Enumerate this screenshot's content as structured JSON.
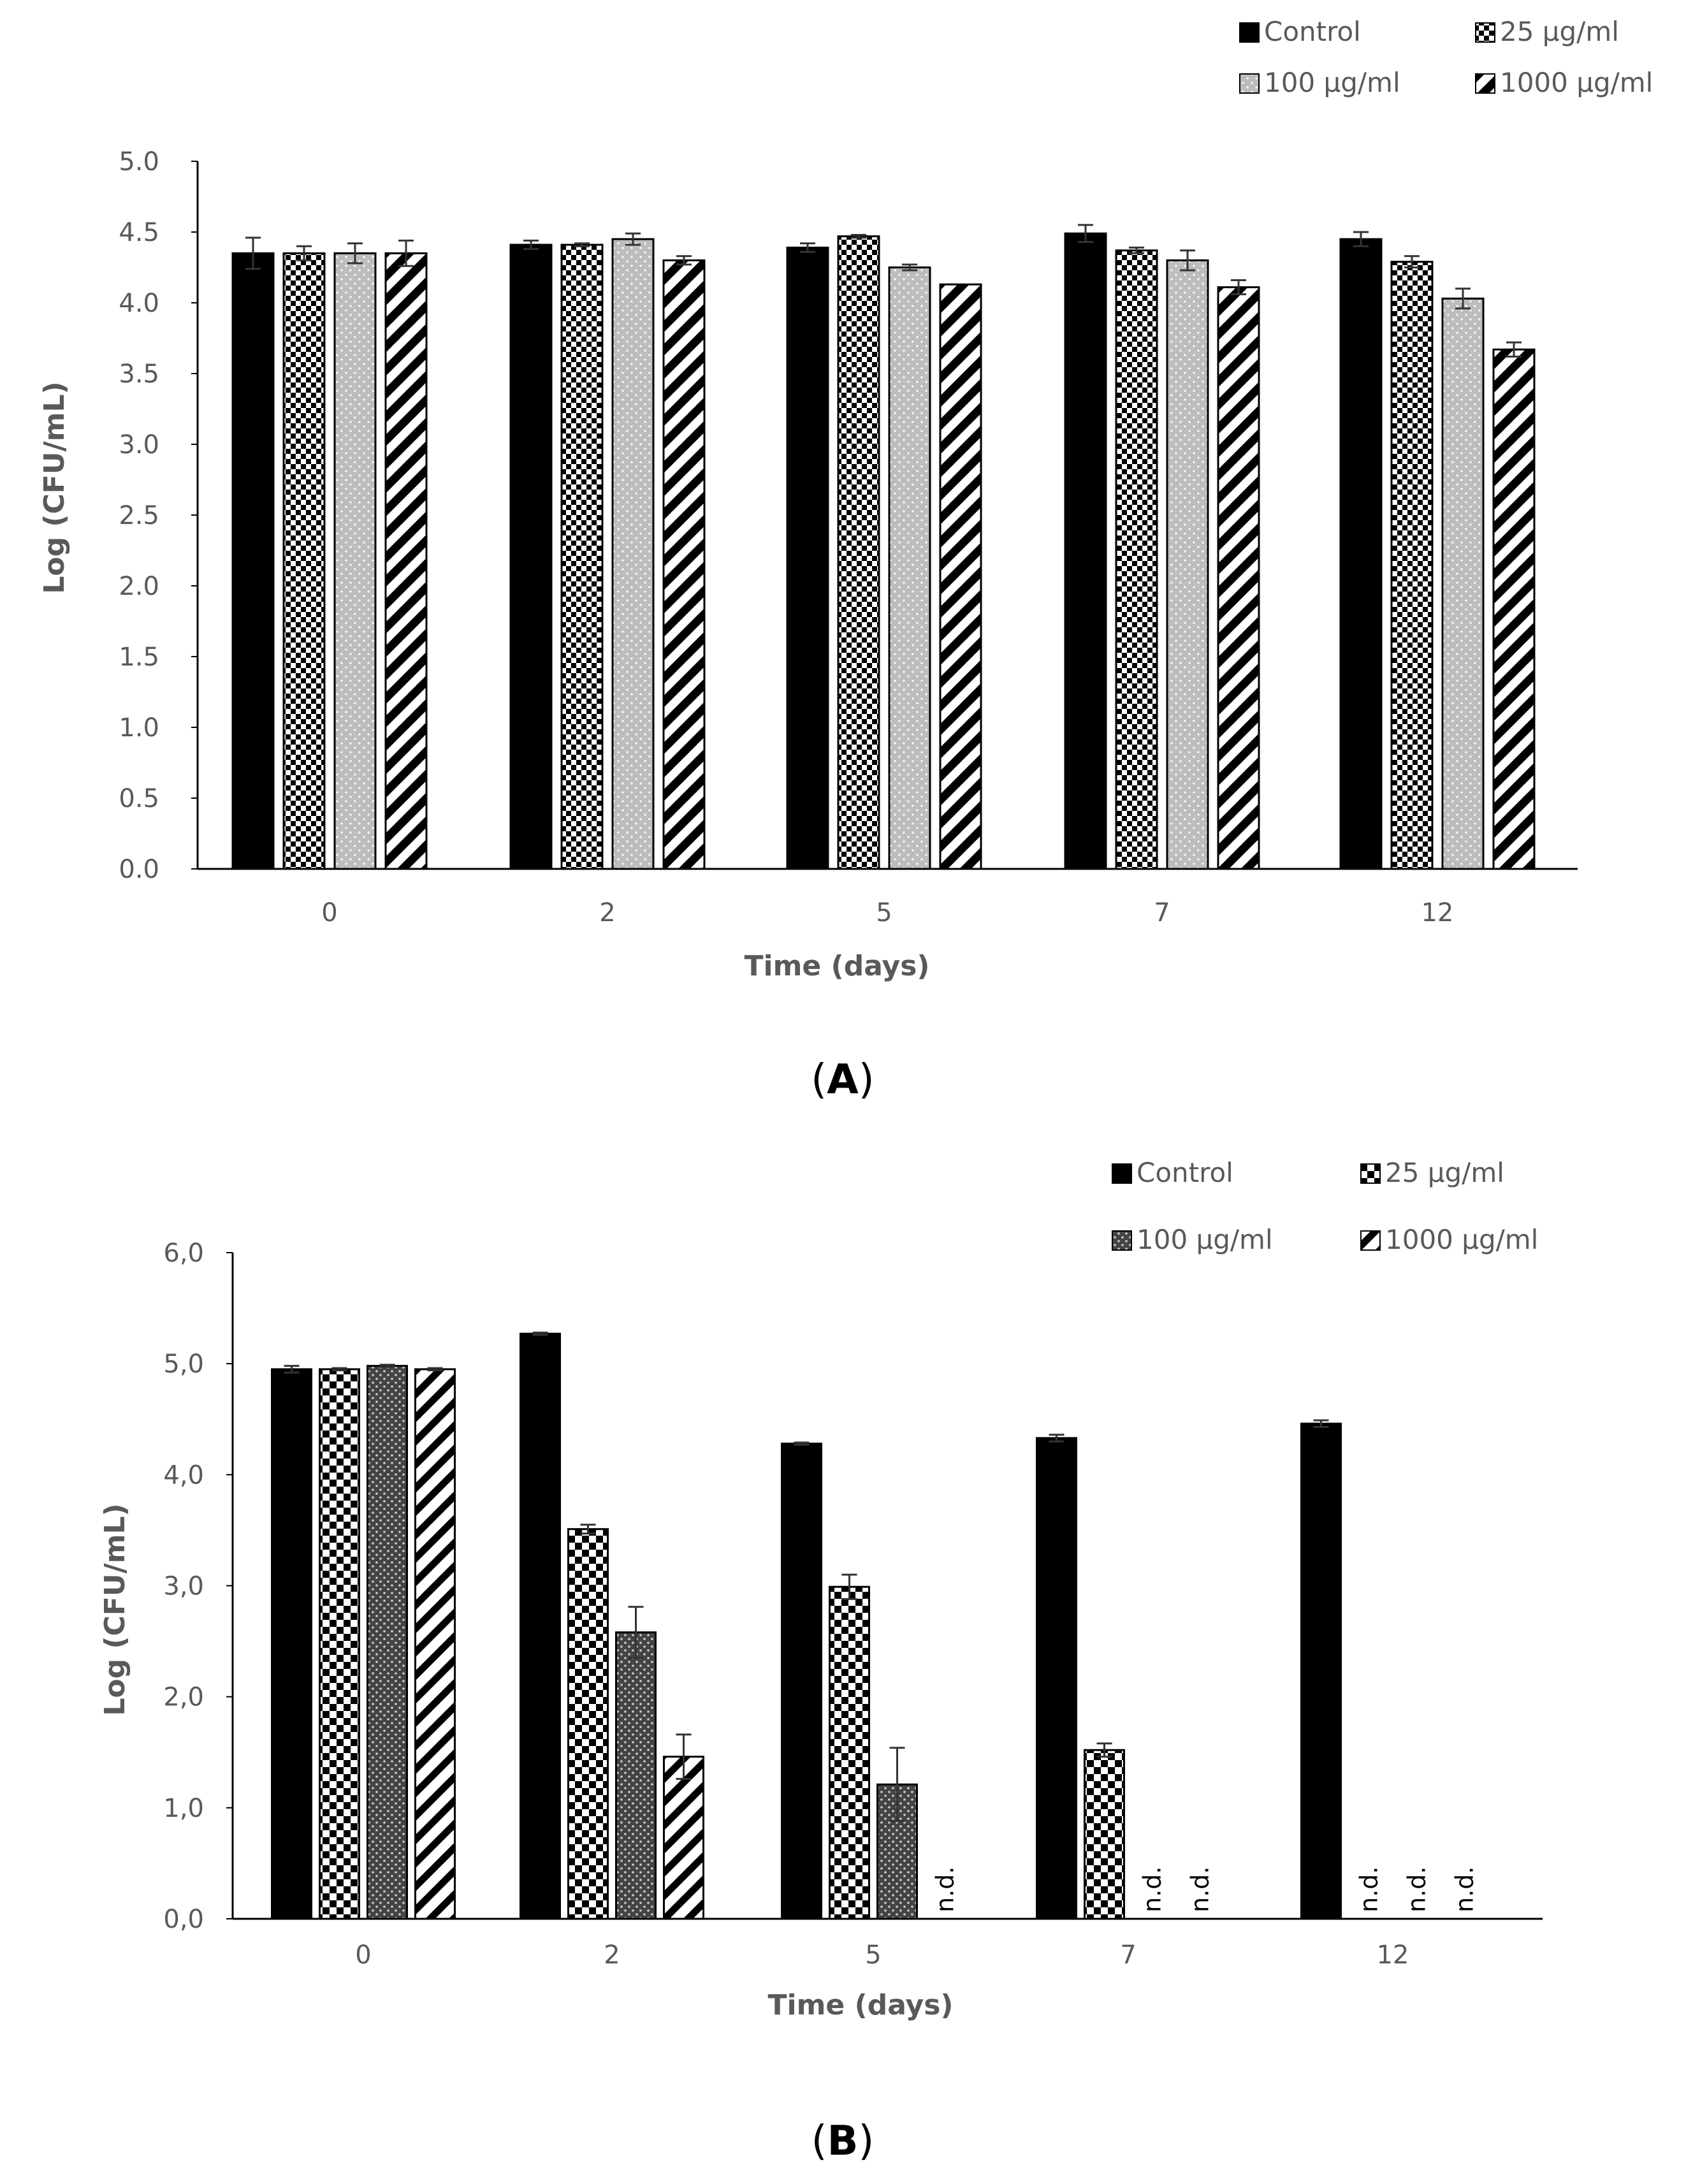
{
  "chart_data": [
    {
      "type": "bar",
      "panel_label": "A",
      "panel_letter": "A",
      "categories": [
        "0",
        "2",
        "5",
        "7",
        "12"
      ],
      "series": [
        {
          "name": "Control",
          "values": [
            4.35,
            4.41,
            4.39,
            4.49,
            4.45
          ],
          "errors": [
            0.11,
            0.03,
            0.03,
            0.06,
            0.05
          ]
        },
        {
          "name": "25 μg/ml",
          "values": [
            4.35,
            4.41,
            4.47,
            4.37,
            4.29
          ],
          "errors": [
            0.05,
            0.01,
            0.01,
            0.02,
            0.04
          ]
        },
        {
          "name": "100 μg/ml",
          "values": [
            4.35,
            4.45,
            4.25,
            4.3,
            4.03
          ],
          "errors": [
            0.07,
            0.04,
            0.02,
            0.07,
            0.07
          ]
        },
        {
          "name": "1000 μg/ml",
          "values": [
            4.35,
            4.3,
            4.13,
            4.11,
            3.67
          ],
          "errors": [
            0.09,
            0.03,
            0.0,
            0.05,
            0.05
          ]
        }
      ],
      "nd_labels": [],
      "y_ticks": [
        "0.0",
        "0.5",
        "1.0",
        "1.5",
        "2.0",
        "2.5",
        "3.0",
        "3.5",
        "4.0",
        "4.5",
        "5.0"
      ],
      "ylim": [
        0,
        5
      ],
      "xlabel": "Time (days)",
      "ylabel": "Log (CFU/mL)",
      "legend_position": "top-right"
    },
    {
      "type": "bar",
      "panel_label": "B",
      "panel_letter": "B",
      "categories": [
        "0",
        "2",
        "5",
        "7",
        "12"
      ],
      "series": [
        {
          "name": "Control",
          "values": [
            4.95,
            5.27,
            4.28,
            4.33,
            4.46
          ],
          "errors": [
            0.03,
            0.01,
            0.01,
            0.03,
            0.03
          ]
        },
        {
          "name": "25 μg/ml",
          "values": [
            4.95,
            3.51,
            2.99,
            1.52,
            null
          ],
          "errors": [
            0.01,
            0.04,
            0.11,
            0.06,
            0
          ]
        },
        {
          "name": "100 μg/ml",
          "values": [
            4.98,
            2.58,
            1.21,
            null,
            null
          ],
          "errors": [
            0.01,
            0.23,
            0.33,
            0,
            0
          ]
        },
        {
          "name": "1000 μg/ml",
          "values": [
            4.95,
            1.46,
            null,
            null,
            null
          ],
          "errors": [
            0.01,
            0.2,
            0,
            0,
            0
          ]
        }
      ],
      "nd_labels": [
        {
          "category": 2,
          "series": 3,
          "text": "n.d."
        },
        {
          "category": 3,
          "series": 2,
          "text": "n.d."
        },
        {
          "category": 3,
          "series": 3,
          "text": "n.d."
        },
        {
          "category": 4,
          "series": 1,
          "text": "n.d."
        },
        {
          "category": 4,
          "series": 2,
          "text": "n.d."
        },
        {
          "category": 4,
          "series": 3,
          "text": "n.d."
        }
      ],
      "y_ticks": [
        "0,0",
        "1,0",
        "2,0",
        "3,0",
        "4,0",
        "5,0",
        "6,0"
      ],
      "ylim": [
        0,
        6
      ],
      "xlabel": "Time (days)",
      "ylabel": "Log (CFU/mL)",
      "legend_position": "top-right"
    }
  ]
}
